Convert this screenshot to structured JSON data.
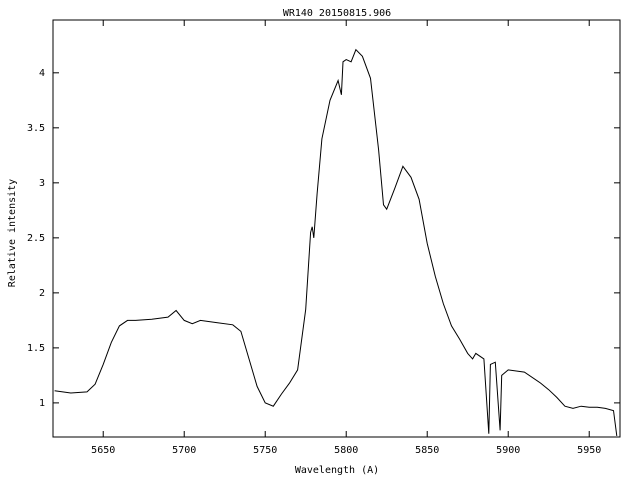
{
  "chart_data": {
    "type": "line",
    "title": "WR140 20150815.906",
    "xlabel": "Wavelength (A)",
    "ylabel": "Relative intensity",
    "x": [
      5620,
      5630,
      5640,
      5645,
      5650,
      5655,
      5660,
      5665,
      5670,
      5680,
      5690,
      5695,
      5700,
      5705,
      5710,
      5720,
      5730,
      5735,
      5740,
      5745,
      5750,
      5755,
      5760,
      5765,
      5770,
      5775,
      5778,
      5779,
      5780,
      5782,
      5785,
      5790,
      5795,
      5797,
      5798,
      5800,
      5803,
      5806,
      5810,
      5815,
      5820,
      5823,
      5825,
      5830,
      5835,
      5840,
      5845,
      5850,
      5855,
      5860,
      5865,
      5870,
      5875,
      5878,
      5880,
      5885,
      5888,
      5889,
      5892,
      5895,
      5896,
      5900,
      5910,
      5920,
      5925,
      5930,
      5935,
      5940,
      5945,
      5950,
      5955,
      5960,
      5965,
      5967
    ],
    "series": [
      {
        "color": "#000000",
        "values": [
          1.11,
          1.09,
          1.1,
          1.17,
          1.35,
          1.55,
          1.7,
          1.75,
          1.75,
          1.76,
          1.78,
          1.84,
          1.75,
          1.72,
          1.75,
          1.73,
          1.71,
          1.65,
          1.4,
          1.15,
          1.0,
          0.97,
          1.08,
          1.18,
          1.3,
          1.85,
          2.55,
          2.6,
          2.5,
          2.9,
          3.4,
          3.75,
          3.93,
          3.8,
          4.1,
          4.12,
          4.1,
          4.21,
          4.15,
          3.95,
          3.3,
          2.8,
          2.76,
          2.95,
          3.15,
          3.05,
          2.85,
          2.45,
          2.15,
          1.9,
          1.7,
          1.58,
          1.45,
          1.4,
          1.45,
          1.4,
          0.72,
          1.35,
          1.37,
          0.75,
          1.25,
          1.3,
          1.28,
          1.18,
          1.12,
          1.05,
          0.97,
          0.95,
          0.97,
          0.96,
          0.96,
          0.95,
          0.93,
          0.7
        ]
      }
    ],
    "xlim": [
      5619,
      5969
    ],
    "ylim": [
      0.69,
      4.48
    ],
    "xticks": [
      5650,
      5700,
      5750,
      5800,
      5850,
      5900,
      5950
    ],
    "yticks": [
      1,
      1.5,
      2,
      2.5,
      3,
      3.5,
      4
    ]
  }
}
